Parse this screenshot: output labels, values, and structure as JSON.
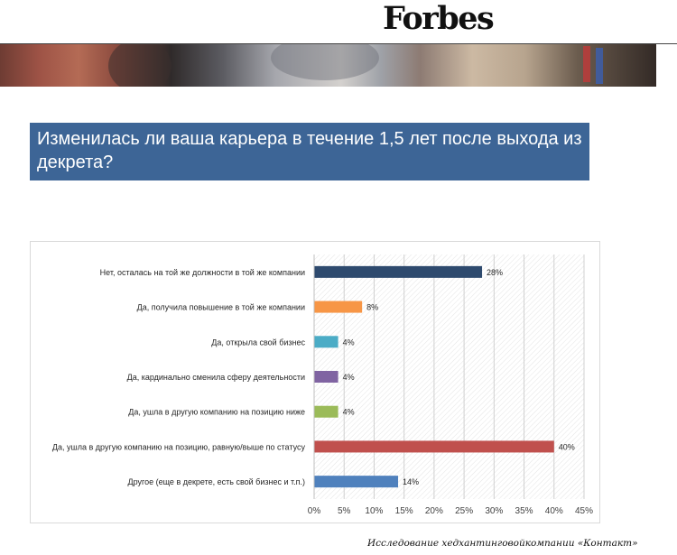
{
  "header": {
    "logo": "Forbes"
  },
  "question": "Изменилась ли ваша карьера в течение 1,5 лет после выхода из декрета?",
  "caption": "Исследование хедхантинговойкомпании «Контакт»",
  "colors": {
    "title_bg": "#3d6596"
  },
  "chart_data": {
    "type": "bar",
    "orientation": "horizontal",
    "categories": [
      "Нет, осталась на той же должности в той же компании",
      "Да, получила повышение в той же компании",
      "Да, открыла свой бизнес",
      "Да, кардинально сменила сферу деятельности",
      "Да, ушла в другую компанию на позицию ниже",
      "Да, ушла в другую компанию на позицию, равную/выше по статусу",
      "Другое (еще в декрете, есть свой бизнес и т.п.)"
    ],
    "values": [
      28,
      8,
      4,
      4,
      4,
      40,
      14
    ],
    "data_labels": [
      "28%",
      "8%",
      "4%",
      "4%",
      "4%",
      "40%",
      "14%"
    ],
    "bar_colors": [
      "#2e4a6e",
      "#f79646",
      "#4bacc6",
      "#8064a2",
      "#9bbb59",
      "#c0504d",
      "#4f81bd"
    ],
    "xlim": [
      0,
      45
    ],
    "xticks": [
      0,
      5,
      10,
      15,
      20,
      25,
      30,
      35,
      40,
      45
    ],
    "xtick_labels": [
      "0%",
      "5%",
      "10%",
      "15%",
      "20%",
      "25%",
      "30%",
      "35%",
      "40%",
      "45%"
    ],
    "grid": true
  }
}
